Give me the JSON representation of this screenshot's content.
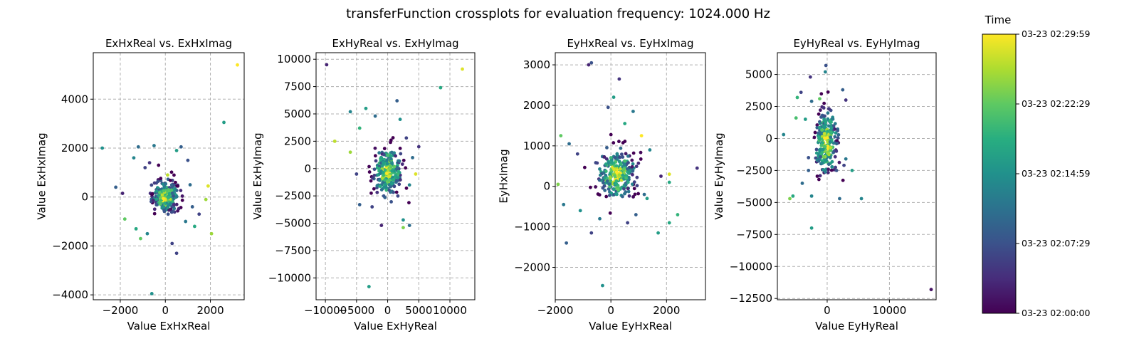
{
  "figure": {
    "title": "transferFunction crossplots for evaluation frequency: 1024.000 Hz"
  },
  "colorbar": {
    "label": "Time",
    "colormap": "viridis",
    "ticks": [
      "03-23 02:00:00",
      "03-23 02:07:29",
      "03-23 02:14:59",
      "03-23 02:22:29",
      "03-23 02:29:59"
    ]
  },
  "chart_data": [
    {
      "type": "scatter",
      "title": "ExHxReal vs. ExHxImag",
      "xlabel": "Value ExHxReal",
      "ylabel": "Value ExHxImag",
      "xlim": [
        -3200,
        3500
      ],
      "ylim": [
        -4200,
        5900
      ],
      "xticks": [
        -2000,
        0,
        2000
      ],
      "yticks": [
        -4000,
        -2000,
        0,
        2000,
        4000
      ],
      "xtick_labels": [
        "−2000",
        "0",
        "2000"
      ],
      "ytick_labels": [
        "−4000",
        "−2000",
        "0",
        "2000",
        "4000"
      ],
      "grid": true,
      "cluster": {
        "x": 0,
        "y": 0,
        "sx": 280,
        "sy": 320,
        "n": 260
      },
      "points": [
        [
          3200,
          5400,
          1.0
        ],
        [
          2600,
          3050,
          0.55
        ],
        [
          -2800,
          2000,
          0.5
        ],
        [
          -1200,
          2050,
          0.35
        ],
        [
          -500,
          2100,
          0.4
        ],
        [
          700,
          2050,
          0.3
        ],
        [
          500,
          1900,
          0.55
        ],
        [
          1000,
          1500,
          0.25
        ],
        [
          -1400,
          1600,
          0.45
        ],
        [
          -700,
          1400,
          0.15
        ],
        [
          2050,
          -1500,
          0.85
        ],
        [
          1900,
          450,
          0.95
        ],
        [
          1800,
          -100,
          0.85
        ],
        [
          -2200,
          400,
          0.3
        ],
        [
          -1900,
          150,
          0.1
        ],
        [
          -1800,
          -900,
          0.75
        ],
        [
          -1300,
          -1300,
          0.6
        ],
        [
          -1100,
          -1700,
          0.75
        ],
        [
          -800,
          -1500,
          0.45
        ],
        [
          300,
          -1900,
          0.2
        ],
        [
          500,
          -2300,
          0.2
        ],
        [
          -600,
          -3950,
          0.5
        ],
        [
          1200,
          -400,
          0.3
        ],
        [
          900,
          -1000,
          0.4
        ],
        [
          1500,
          -700,
          0.2
        ],
        [
          1100,
          500,
          0.35
        ],
        [
          -300,
          1300,
          0.0
        ],
        [
          100,
          900,
          0.9
        ],
        [
          -900,
          1200,
          0.2
        ],
        [
          1300,
          -1200,
          0.6
        ]
      ]
    },
    {
      "type": "scatter",
      "title": "ExHyReal vs. ExHyImag",
      "xlabel": "Value ExHyReal",
      "ylabel": "Value ExHyImag",
      "xlim": [
        -11500,
        14000
      ],
      "ylim": [
        -12000,
        10600
      ],
      "xticks": [
        -10000,
        -5000,
        0,
        5000,
        10000
      ],
      "yticks": [
        -10000,
        -7500,
        -5000,
        -2500,
        0,
        2500,
        5000,
        7500,
        10000
      ],
      "xtick_labels": [
        "−10000",
        "−5000",
        "0",
        "5000",
        "10000"
      ],
      "ytick_labels": [
        "−10000",
        "−7500",
        "−5000",
        "−2500",
        "0",
        "2500",
        "5000",
        "7500",
        "10000"
      ],
      "grid": true,
      "cluster": {
        "x": 0,
        "y": -300,
        "sx": 1100,
        "sy": 1100,
        "n": 260
      },
      "points": [
        [
          -9800,
          9500,
          0.1
        ],
        [
          12000,
          9100,
          0.95
        ],
        [
          8500,
          7400,
          0.6
        ],
        [
          -8500,
          2500,
          0.9
        ],
        [
          -3500,
          5500,
          0.55
        ],
        [
          -6000,
          5200,
          0.45
        ],
        [
          -2000,
          4800,
          0.35
        ],
        [
          2000,
          4500,
          0.5
        ],
        [
          1500,
          6200,
          0.3
        ],
        [
          -4500,
          3700,
          0.65
        ],
        [
          -6000,
          1500,
          0.85
        ],
        [
          4000,
          1000,
          0.35
        ],
        [
          4500,
          -500,
          0.95
        ],
        [
          3500,
          -1500,
          0.45
        ],
        [
          -2500,
          -3500,
          0.2
        ],
        [
          -4500,
          -3300,
          0.3
        ],
        [
          2500,
          -4700,
          0.5
        ],
        [
          3500,
          -5200,
          0.35
        ],
        [
          2500,
          -5400,
          0.8
        ],
        [
          -3000,
          -10800,
          0.55
        ],
        [
          -5000,
          -500,
          0.2
        ],
        [
          5000,
          2000,
          0.15
        ],
        [
          -1000,
          -5200,
          0.1
        ],
        [
          3000,
          2800,
          0.2
        ]
      ]
    },
    {
      "type": "scatter",
      "title": "EyHxReal vs. EyHxImag",
      "xlabel": "Value EyHxReal",
      "ylabel": "EyHxImag",
      "xlim": [
        -2000,
        3400
      ],
      "ylim": [
        -2800,
        3300
      ],
      "xticks": [
        -2000,
        0,
        2000
      ],
      "yticks": [
        -2000,
        -1000,
        0,
        1000,
        2000,
        3000
      ],
      "xtick_labels": [
        "−2000",
        "0",
        "2000"
      ],
      "ytick_labels": [
        "−2000",
        "−1000",
        "0",
        "1000",
        "2000",
        "3000"
      ],
      "grid": true,
      "cluster": {
        "x": 200,
        "y": 300,
        "sx": 330,
        "sy": 300,
        "n": 270
      },
      "points": [
        [
          -800,
          3000,
          0.1
        ],
        [
          -700,
          3050,
          0.25
        ],
        [
          300,
          2650,
          0.15
        ],
        [
          100,
          2200,
          0.55
        ],
        [
          -100,
          1950,
          0.25
        ],
        [
          800,
          1850,
          0.4
        ],
        [
          500,
          1550,
          0.6
        ],
        [
          1100,
          1250,
          1.0
        ],
        [
          -1800,
          1250,
          0.75
        ],
        [
          -1500,
          1050,
          0.35
        ],
        [
          -1200,
          800,
          0.2
        ],
        [
          1400,
          900,
          0.45
        ],
        [
          2100,
          300,
          0.95
        ],
        [
          2100,
          100,
          0.6
        ],
        [
          1800,
          250,
          0.1
        ],
        [
          3100,
          450,
          0.15
        ],
        [
          -1900,
          50,
          0.8
        ],
        [
          -1700,
          -450,
          0.4
        ],
        [
          -1100,
          -600,
          0.5
        ],
        [
          -700,
          -1150,
          0.2
        ],
        [
          -1600,
          -1400,
          0.3
        ],
        [
          -300,
          -2450,
          0.5
        ],
        [
          1700,
          -1150,
          0.55
        ],
        [
          2100,
          -900,
          0.6
        ],
        [
          2400,
          -700,
          0.65
        ],
        [
          1300,
          -300,
          0.55
        ],
        [
          900,
          -700,
          0.3
        ],
        [
          -400,
          -800,
          0.4
        ],
        [
          600,
          -900,
          0.2
        ],
        [
          1200,
          -200,
          0.35
        ]
      ]
    },
    {
      "type": "scatter",
      "title": "EyHyReal vs. EyHyImag",
      "xlabel": "Value EyHyReal",
      "ylabel": "Value EyHyImag",
      "xlim": [
        -8000,
        17500
      ],
      "ylim": [
        -12600,
        6700
      ],
      "xticks": [
        0,
        10000
      ],
      "yticks": [
        -12500,
        -10000,
        -7500,
        -5000,
        -2500,
        0,
        2500,
        5000
      ],
      "xtick_labels": [
        "0",
        "10000"
      ],
      "ytick_labels": [
        "−12500",
        "−10000",
        "−7500",
        "−5000",
        "−2500",
        "0",
        "2500",
        "5000"
      ],
      "grid": true,
      "cluster": {
        "x": -200,
        "y": -300,
        "sx": 900,
        "sy": 1200,
        "n": 250
      },
      "points": [
        [
          -200,
          5700,
          0.25
        ],
        [
          -300,
          5200,
          0.45
        ],
        [
          -2700,
          4800,
          0.15
        ],
        [
          -4200,
          3600,
          0.2
        ],
        [
          -4800,
          3200,
          0.65
        ],
        [
          2500,
          3800,
          0.3
        ],
        [
          3000,
          3000,
          0.15
        ],
        [
          -2500,
          2900,
          0.35
        ],
        [
          -1200,
          3100,
          0.75
        ],
        [
          -3500,
          1500,
          0.55
        ],
        [
          -5000,
          1600,
          0.7
        ],
        [
          -7000,
          300,
          0.45
        ],
        [
          -3000,
          -1500,
          0.25
        ],
        [
          3000,
          -1600,
          0.4
        ],
        [
          2700,
          -2100,
          0.2
        ],
        [
          4000,
          -2500,
          0.55
        ],
        [
          -4000,
          -3500,
          0.35
        ],
        [
          -6000,
          -4700,
          0.8
        ],
        [
          -5500,
          -4500,
          0.6
        ],
        [
          -2500,
          -4500,
          0.45
        ],
        [
          -2500,
          -7000,
          0.55
        ],
        [
          2000,
          -4700,
          0.35
        ],
        [
          5500,
          -4700,
          0.45
        ],
        [
          16700,
          -11800,
          0.05
        ],
        [
          -3000,
          -2500,
          0.3
        ],
        [
          1500,
          -2500,
          0.25
        ]
      ]
    }
  ]
}
